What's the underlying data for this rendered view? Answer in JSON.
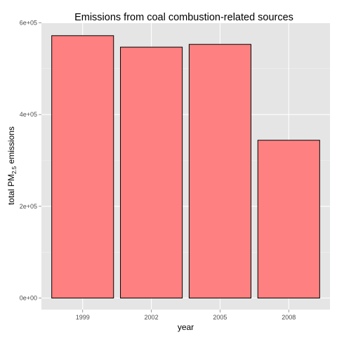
{
  "chart_data": {
    "type": "bar",
    "title": "Emissions from coal combustion-related sources",
    "xlabel": "year",
    "ylabel": {
      "prefix": "total PM",
      "subscript": "2.5",
      "suffix": " emissions"
    },
    "categories": [
      "1999",
      "2002",
      "2005",
      "2008"
    ],
    "values": [
      572000,
      547000,
      553000,
      344000
    ],
    "ylim": [
      0,
      620000
    ],
    "yticks": [
      {
        "value": 0,
        "label": "0e+00"
      },
      {
        "value": 200000,
        "label": "2e+05"
      },
      {
        "value": 400000,
        "label": "4e+05"
      },
      {
        "value": 600000,
        "label": "6e+05"
      }
    ],
    "grid": true,
    "bar_color": "#FF8080",
    "panel_background": "#E5E5E5"
  }
}
